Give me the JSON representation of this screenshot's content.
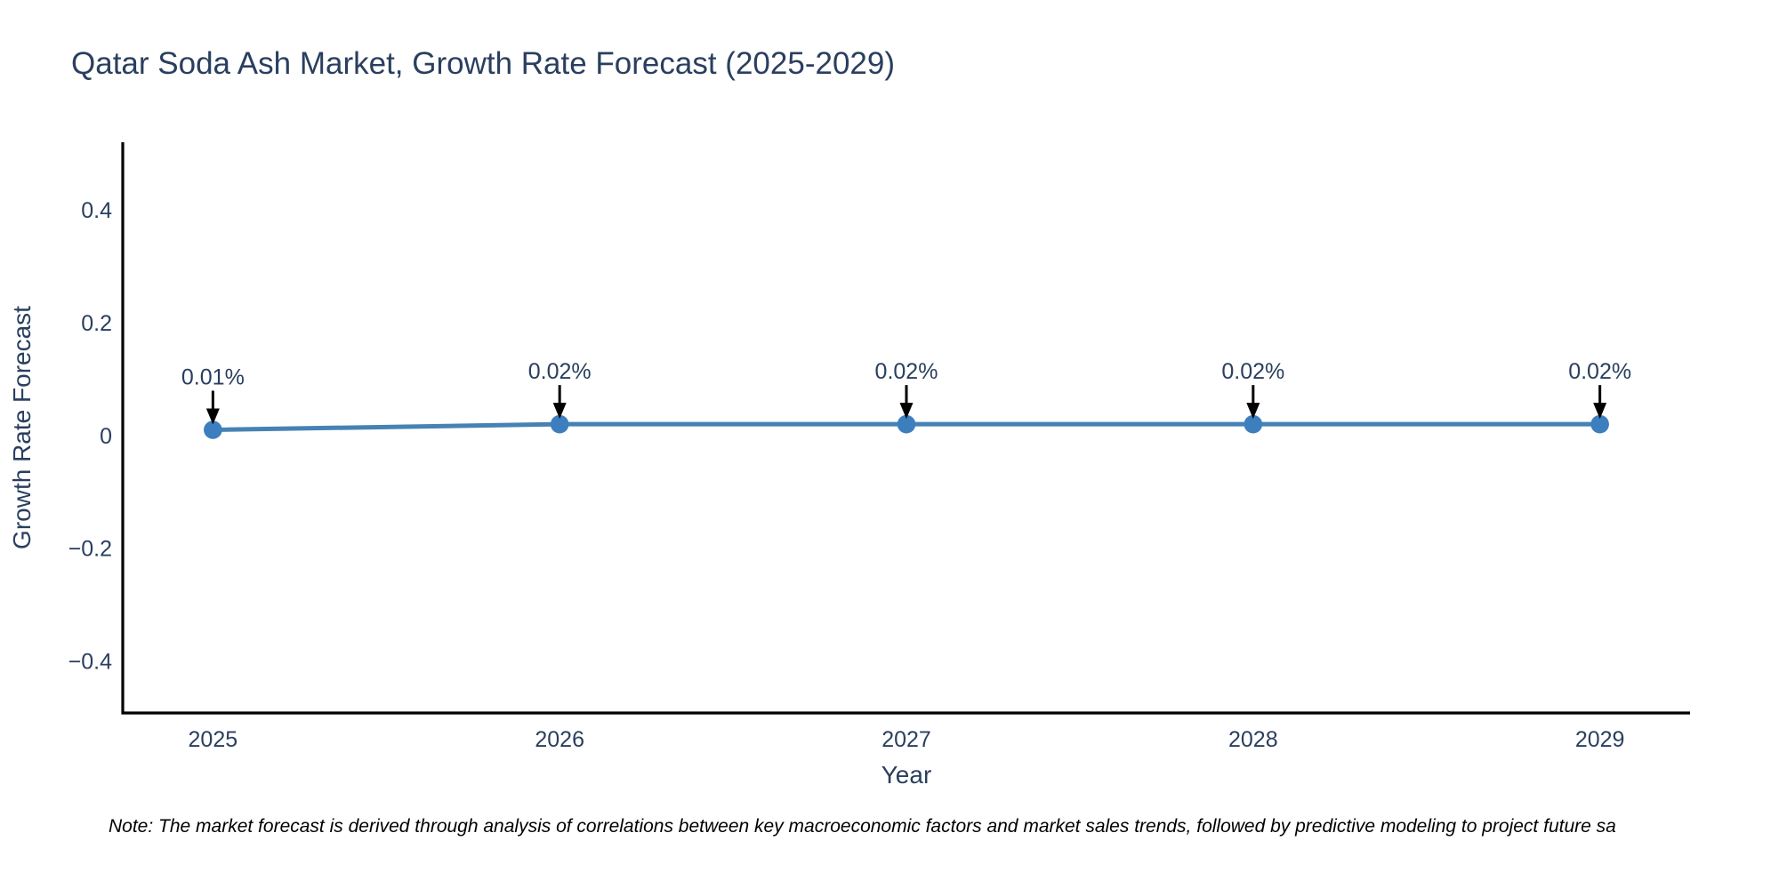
{
  "note": "Note: The market forecast is derived through analysis of correlations between key macroeconomic factors and market sales trends, followed by predictive modeling to project future sa",
  "chart_data": {
    "type": "line",
    "title": "Qatar Soda Ash Market, Growth Rate Forecast (2025-2029)",
    "xlabel": "Year",
    "ylabel": "Growth Rate Forecast",
    "x": [
      2025,
      2026,
      2027,
      2028,
      2029
    ],
    "y": [
      0.01,
      0.02,
      0.02,
      0.02,
      0.02
    ],
    "point_labels": [
      "0.01%",
      "0.02%",
      "0.02%",
      "0.02%",
      "0.02%"
    ],
    "xtick_labels": [
      "2025",
      "2026",
      "2027",
      "2028",
      "2029"
    ],
    "ytick_values": [
      0.4,
      0.2,
      0,
      -0.2,
      -0.4
    ],
    "ytick_labels": [
      "0.4",
      "0.2",
      "0",
      "−0.2",
      "−0.4"
    ],
    "xlim": [
      2024.74,
      2029.26
    ],
    "ylim": [
      -0.4923,
      0.5202
    ],
    "grid": false,
    "legend_shown": false,
    "colors": {
      "line": "#4682b4",
      "marker": "#3d7ebf",
      "axis": "#000000",
      "text": "#2a3f5f",
      "annotation_arrow": "#000000",
      "note_text": "#000000"
    }
  }
}
